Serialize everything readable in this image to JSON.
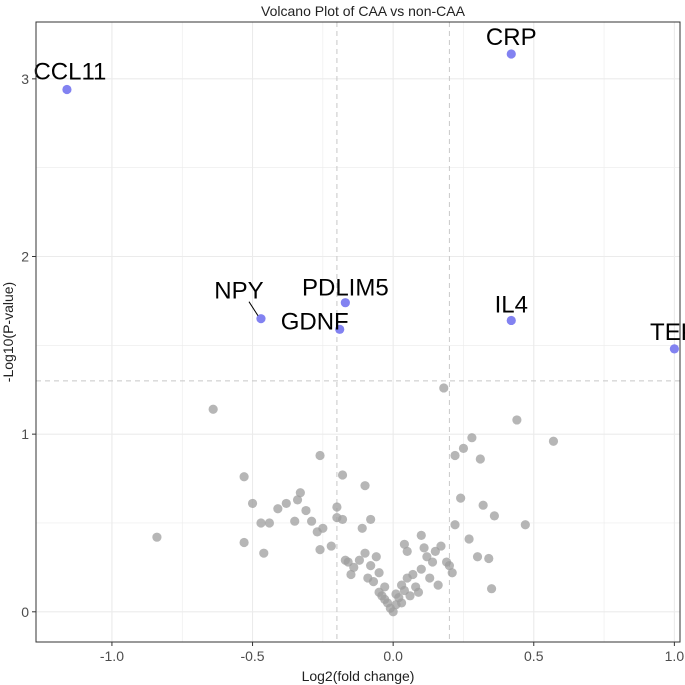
{
  "chart_data": {
    "type": "scatter",
    "title": "Volcano Plot of CAA vs non-CAA",
    "xlabel": "Log2(fold change)",
    "ylabel": "-Log10(P-value)",
    "xlim": [
      -1.27,
      1.02
    ],
    "ylim": [
      -0.17,
      3.32
    ],
    "x_ticks": [
      -1.0,
      -0.5,
      0.0,
      0.5,
      1.0
    ],
    "x_tick_labels": [
      "-1.0",
      "-0.5",
      "0.0",
      "0.5",
      "1.0"
    ],
    "y_ticks": [
      0,
      1,
      2,
      3
    ],
    "y_tick_labels": [
      "0",
      "1",
      "2",
      "3"
    ],
    "grid": true,
    "thresholds": {
      "fc": [
        -0.2,
        0.2
      ],
      "p": 1.3
    },
    "colors": {
      "significant": "#7b7bf0",
      "not_significant": "#9e9e9e",
      "threshold": "#c8c8c8",
      "grid": "#ebebeb",
      "panel_border": "#333333"
    },
    "significant_points": [
      {
        "label": "CCL11",
        "x": -1.16,
        "y": 2.94
      },
      {
        "label": "CRP",
        "x": 0.42,
        "y": 3.14
      },
      {
        "label": "NPY",
        "x": -0.47,
        "y": 1.65
      },
      {
        "label": "PDLIM5",
        "x": -0.17,
        "y": 1.74
      },
      {
        "label": "GDNF",
        "x": -0.19,
        "y": 1.59
      },
      {
        "label": "IL4",
        "x": 0.42,
        "y": 1.64
      },
      {
        "label": "TEK",
        "x": 1.0,
        "y": 1.48
      }
    ],
    "other_points": [
      [
        -0.84,
        0.42
      ],
      [
        -0.64,
        1.14
      ],
      [
        -0.53,
        0.76
      ],
      [
        -0.53,
        0.39
      ],
      [
        -0.5,
        0.61
      ],
      [
        -0.47,
        0.5
      ],
      [
        -0.46,
        0.33
      ],
      [
        -0.44,
        0.5
      ],
      [
        -0.41,
        0.58
      ],
      [
        -0.38,
        0.61
      ],
      [
        -0.35,
        0.51
      ],
      [
        -0.34,
        0.63
      ],
      [
        -0.33,
        0.67
      ],
      [
        -0.31,
        0.57
      ],
      [
        -0.29,
        0.51
      ],
      [
        -0.27,
        0.45
      ],
      [
        -0.26,
        0.88
      ],
      [
        -0.26,
        0.35
      ],
      [
        -0.25,
        0.47
      ],
      [
        -0.22,
        0.37
      ],
      [
        -0.2,
        0.53
      ],
      [
        -0.2,
        0.59
      ],
      [
        -0.18,
        0.77
      ],
      [
        -0.18,
        0.52
      ],
      [
        -0.17,
        0.29
      ],
      [
        -0.16,
        0.28
      ],
      [
        -0.15,
        0.21
      ],
      [
        -0.14,
        0.25
      ],
      [
        -0.12,
        0.29
      ],
      [
        -0.11,
        0.47
      ],
      [
        -0.1,
        0.71
      ],
      [
        -0.1,
        0.33
      ],
      [
        -0.09,
        0.19
      ],
      [
        -0.08,
        0.52
      ],
      [
        -0.08,
        0.26
      ],
      [
        -0.07,
        0.17
      ],
      [
        -0.06,
        0.31
      ],
      [
        -0.05,
        0.11
      ],
      [
        -0.05,
        0.22
      ],
      [
        -0.04,
        0.09
      ],
      [
        -0.03,
        0.14
      ],
      [
        -0.03,
        0.07
      ],
      [
        -0.02,
        0.05
      ],
      [
        -0.01,
        0.02
      ],
      [
        0.0,
        0.0
      ],
      [
        0.01,
        0.04
      ],
      [
        0.01,
        0.1
      ],
      [
        0.02,
        0.08
      ],
      [
        0.03,
        0.15
      ],
      [
        0.03,
        0.05
      ],
      [
        0.04,
        0.12
      ],
      [
        0.04,
        0.38
      ],
      [
        0.05,
        0.19
      ],
      [
        0.05,
        0.34
      ],
      [
        0.06,
        0.09
      ],
      [
        0.07,
        0.21
      ],
      [
        0.08,
        0.14
      ],
      [
        0.09,
        0.11
      ],
      [
        0.1,
        0.24
      ],
      [
        0.1,
        0.43
      ],
      [
        0.11,
        0.36
      ],
      [
        0.12,
        0.31
      ],
      [
        0.13,
        0.19
      ],
      [
        0.14,
        0.28
      ],
      [
        0.15,
        0.34
      ],
      [
        0.16,
        0.15
      ],
      [
        0.17,
        0.37
      ],
      [
        0.18,
        1.26
      ],
      [
        0.19,
        0.28
      ],
      [
        0.2,
        0.26
      ],
      [
        0.21,
        0.22
      ],
      [
        0.22,
        0.49
      ],
      [
        0.22,
        0.88
      ],
      [
        0.24,
        0.64
      ],
      [
        0.25,
        0.92
      ],
      [
        0.27,
        0.41
      ],
      [
        0.28,
        0.98
      ],
      [
        0.3,
        0.31
      ],
      [
        0.31,
        0.86
      ],
      [
        0.32,
        0.6
      ],
      [
        0.34,
        0.3
      ],
      [
        0.35,
        0.13
      ],
      [
        0.36,
        0.54
      ],
      [
        0.44,
        1.08
      ],
      [
        0.47,
        0.49
      ],
      [
        0.57,
        0.96
      ]
    ]
  }
}
